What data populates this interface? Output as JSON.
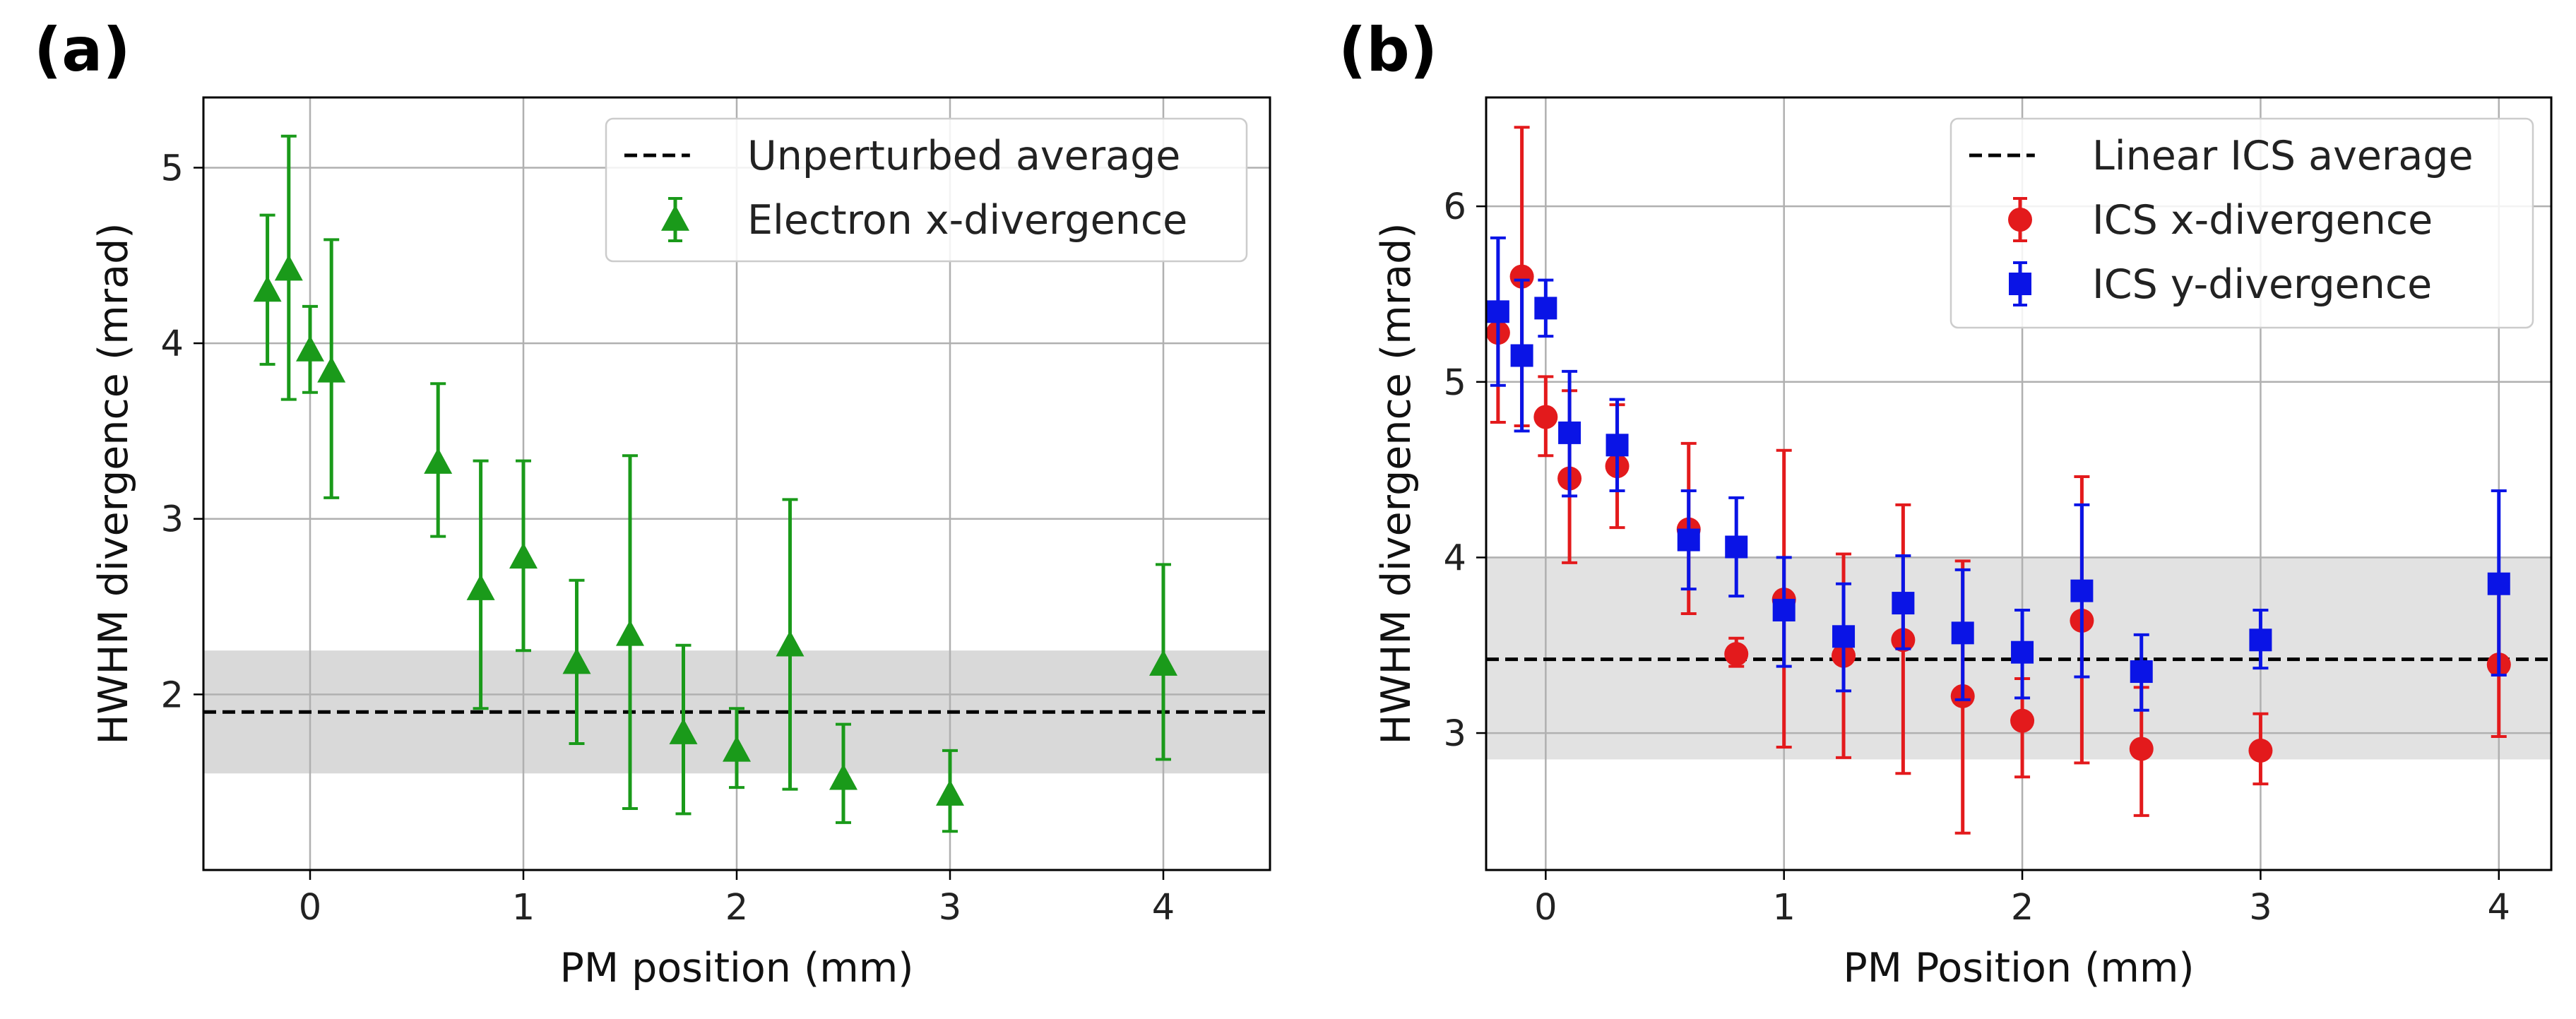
{
  "chart_data": [
    {
      "type": "scatter",
      "panel_label": "(a)",
      "title": "",
      "xlabel": "PM position (mm)",
      "ylabel": "HWHM divergence (mrad)",
      "xlim": [
        -0.5,
        4.5
      ],
      "ylim": [
        1.0,
        5.4
      ],
      "xticks": [
        0,
        1,
        2,
        3,
        4
      ],
      "yticks": [
        2,
        3,
        4,
        5
      ],
      "grid": true,
      "legend_position": "top-right",
      "reference": {
        "name": "Unperturbed average",
        "value": 1.9,
        "band": [
          1.55,
          2.25
        ],
        "color": "#000000",
        "band_color": "#d9d9d9"
      },
      "series": [
        {
          "name": "Electron x-divergence",
          "marker": "triangle",
          "color": "#1a9a1a",
          "x": [
            -0.2,
            -0.1,
            0.0,
            0.1,
            0.6,
            0.8,
            1.0,
            1.25,
            1.5,
            1.75,
            2.0,
            2.25,
            2.5,
            3.0,
            4.0
          ],
          "y": [
            4.3,
            4.42,
            3.96,
            3.84,
            3.32,
            2.6,
            2.78,
            2.18,
            2.34,
            1.78,
            1.68,
            2.28,
            1.52,
            1.43,
            2.17
          ],
          "lo": [
            3.88,
            3.68,
            3.72,
            3.12,
            2.9,
            1.92,
            2.25,
            1.72,
            1.35,
            1.32,
            1.47,
            1.46,
            1.27,
            1.22,
            1.63
          ],
          "hi": [
            4.73,
            5.18,
            4.21,
            4.59,
            3.77,
            3.33,
            3.33,
            2.65,
            3.36,
            2.28,
            1.92,
            3.11,
            1.83,
            1.68,
            2.74
          ]
        }
      ]
    },
    {
      "type": "scatter",
      "panel_label": "(b)",
      "title": "",
      "xlabel": "PM Position (mm)",
      "ylabel": "HWHM divergence (mrad)",
      "xlim": [
        -0.25,
        4.22
      ],
      "ylim": [
        2.22,
        6.62
      ],
      "xticks": [
        0,
        1,
        2,
        3,
        4
      ],
      "yticks": [
        3,
        4,
        5,
        6
      ],
      "grid": true,
      "legend_position": "top-right",
      "reference": {
        "name": "Linear ICS average",
        "value": 3.42,
        "band": [
          2.85,
          4.0
        ],
        "color": "#000000",
        "band_color": "#e2e2e2"
      },
      "series": [
        {
          "name": "ICS x-divergence",
          "marker": "circle",
          "color": "#e31a1c",
          "x": [
            -0.2,
            -0.1,
            0.0,
            0.1,
            0.3,
            0.6,
            0.8,
            1.0,
            1.25,
            1.5,
            1.75,
            2.0,
            2.25,
            2.5,
            3.0,
            4.0
          ],
          "y": [
            5.28,
            5.6,
            4.8,
            4.45,
            4.52,
            4.16,
            3.45,
            3.76,
            3.44,
            3.53,
            3.21,
            3.07,
            3.64,
            2.91,
            2.9,
            3.39
          ],
          "lo": [
            4.77,
            4.75,
            4.58,
            3.97,
            4.17,
            3.68,
            3.38,
            2.92,
            2.86,
            2.77,
            2.43,
            2.75,
            2.83,
            2.53,
            2.71,
            2.98
          ],
          "hi": [
            5.3,
            6.45,
            5.03,
            4.95,
            4.87,
            4.65,
            3.54,
            4.61,
            4.02,
            4.3,
            3.98,
            3.31,
            4.46,
            3.26,
            3.11,
            3.8
          ]
        },
        {
          "name": "ICS y-divergence",
          "marker": "square",
          "color": "#0a14e6",
          "x": [
            -0.2,
            -0.1,
            0.0,
            0.1,
            0.3,
            0.6,
            0.8,
            1.0,
            1.25,
            1.5,
            1.75,
            2.0,
            2.25,
            2.5,
            3.0,
            4.0
          ],
          "y": [
            5.4,
            5.15,
            5.42,
            4.71,
            4.64,
            4.1,
            4.06,
            3.7,
            3.55,
            3.74,
            3.57,
            3.46,
            3.81,
            3.35,
            3.53,
            3.85
          ],
          "lo": [
            4.98,
            4.72,
            5.26,
            4.35,
            4.38,
            3.82,
            3.78,
            3.38,
            3.24,
            3.48,
            3.19,
            3.2,
            3.32,
            3.13,
            3.37,
            3.33
          ],
          "hi": [
            5.82,
            5.58,
            5.58,
            5.06,
            4.9,
            4.38,
            4.34,
            4.0,
            3.85,
            4.01,
            3.93,
            3.7,
            4.3,
            3.56,
            3.7,
            4.38
          ]
        }
      ]
    }
  ]
}
